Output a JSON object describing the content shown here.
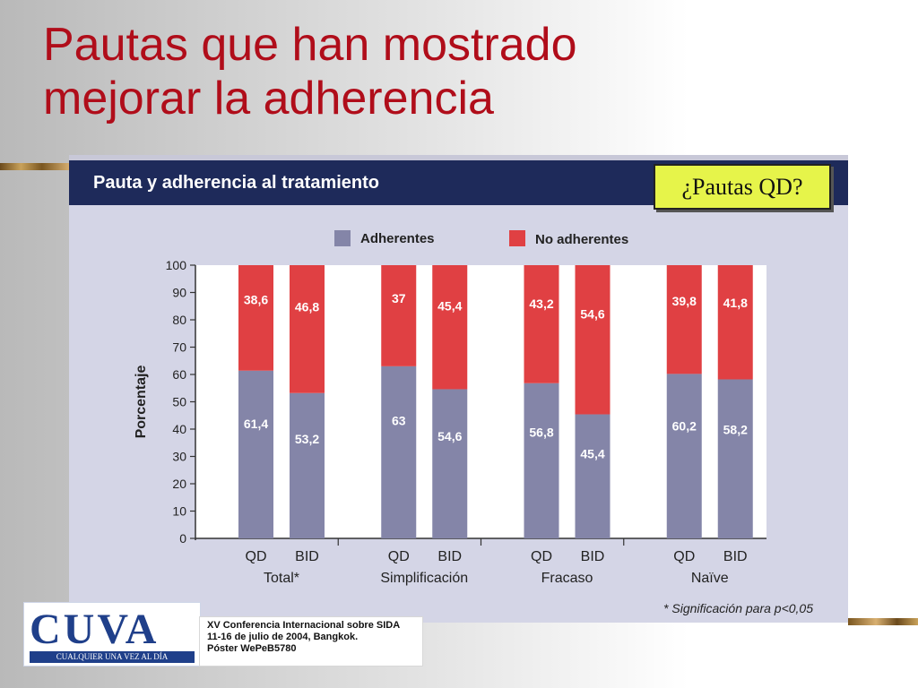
{
  "slide": {
    "title_line1": "Pautas que han mostrado",
    "title_line2": "mejorar la adherencia"
  },
  "figure": {
    "header_title": "Pauta y adherencia al tratamiento",
    "footnote": "* Significación para p<0,05",
    "header_color": "#1e2a5a",
    "panel_color": "#d4d5e6"
  },
  "callout": {
    "text": "¿Pautas QD?",
    "color": "#e6f44a"
  },
  "chart_data": {
    "type": "bar",
    "stacked": true,
    "ylabel": "Porcentaje",
    "ylim": [
      0,
      100
    ],
    "yticks": [
      0,
      10,
      20,
      30,
      40,
      50,
      60,
      70,
      80,
      90,
      100
    ],
    "legend_position": "top",
    "groups": [
      "Total*",
      "Simplificación",
      "Fracaso",
      "Naïve"
    ],
    "categories": [
      "QD",
      "BID",
      "QD",
      "BID",
      "QD",
      "BID",
      "QD",
      "BID"
    ],
    "series": [
      {
        "name": "Adherentes",
        "color": "#8485a8",
        "values": [
          61.4,
          53.2,
          63,
          54.6,
          56.8,
          45.4,
          60.2,
          58.2
        ],
        "labels": [
          "61,4",
          "53,2",
          "63",
          "54,6",
          "56,8",
          "45,4",
          "60,2",
          "58,2"
        ]
      },
      {
        "name": "No adherentes",
        "color": "#e04043",
        "values": [
          38.6,
          46.8,
          37,
          45.4,
          43.2,
          54.6,
          39.8,
          41.8
        ],
        "labels": [
          "38,6",
          "46,8",
          "37",
          "45,4",
          "43,2",
          "54,6",
          "39,8",
          "41,8"
        ]
      }
    ]
  },
  "logo": {
    "name": "CUVA",
    "tagline": "CUALQUIER UNA VEZ AL DÍA"
  },
  "conference": {
    "line1": "XV Conferencia Internacional sobre SIDA",
    "line2": "11-16 de julio de 2004, Bangkok.",
    "line3": "Póster WePeB5780"
  }
}
